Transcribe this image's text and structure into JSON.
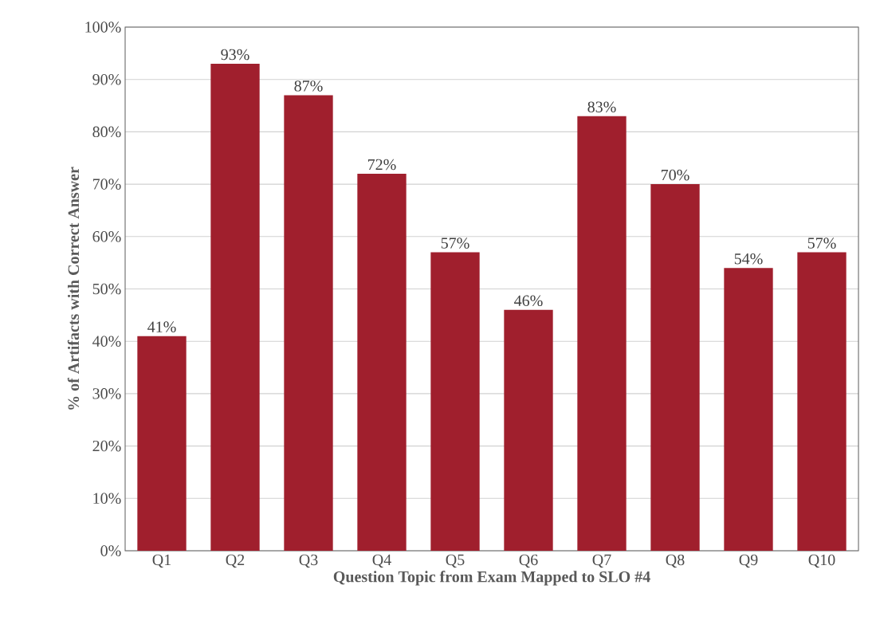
{
  "chart_data": {
    "type": "bar",
    "xlabel": "Question Topic from Exam Mapped to SLO #4",
    "ylabel": "% of Artifacts with Correct Answer",
    "categories": [
      "Q1",
      "Q2",
      "Q3",
      "Q4",
      "Q5",
      "Q6",
      "Q7",
      "Q8",
      "Q9",
      "Q10"
    ],
    "values": [
      41,
      93,
      87,
      72,
      57,
      46,
      83,
      70,
      54,
      57
    ],
    "value_labels": [
      "41%",
      "93%",
      "87%",
      "72%",
      "57%",
      "46%",
      "83%",
      "70%",
      "54%",
      "57%"
    ],
    "color": "#a01f2d",
    "ylim": [
      0,
      100
    ],
    "yticks": [
      {
        "value": 0,
        "label": "0%"
      },
      {
        "value": 10,
        "label": "10%"
      },
      {
        "value": 20,
        "label": "20%"
      },
      {
        "value": 30,
        "label": "30%"
      },
      {
        "value": 40,
        "label": "40%"
      },
      {
        "value": 50,
        "label": "50%"
      },
      {
        "value": 60,
        "label": "60%"
      },
      {
        "value": 70,
        "label": "70%"
      },
      {
        "value": 80,
        "label": "80%"
      },
      {
        "value": 90,
        "label": "90%"
      },
      {
        "value": 100,
        "label": "100%"
      }
    ],
    "grid": "y"
  }
}
